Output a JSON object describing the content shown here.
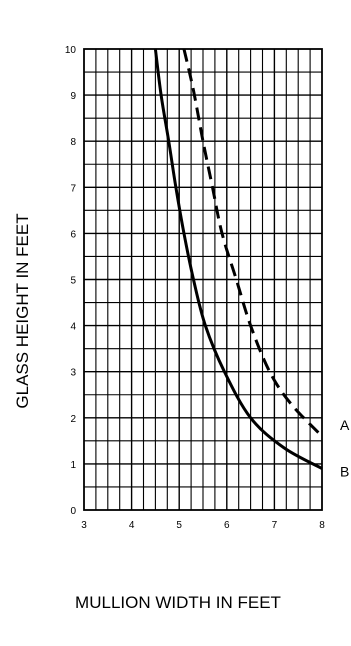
{
  "chart_data": {
    "type": "line",
    "xlabel": "MULLION WIDTH IN FEET",
    "ylabel": "GLASS HEIGHT IN FEET",
    "xlim": [
      3,
      8
    ],
    "ylim": [
      0,
      10
    ],
    "x_ticks": [
      "3",
      "4",
      "5",
      "6",
      "7",
      "8"
    ],
    "y_ticks": [
      "0",
      "1",
      "2",
      "3",
      "4",
      "5",
      "6",
      "7",
      "8",
      "9",
      "10"
    ],
    "grid": true,
    "minor_grid": {
      "x_step": 0.25,
      "y_step": 0.5
    },
    "series": [
      {
        "name": "A",
        "style": "dashed",
        "color": "#000000",
        "points": [
          [
            5.1,
            10
          ],
          [
            5.3,
            9.1
          ],
          [
            5.5,
            8.0
          ],
          [
            5.7,
            7.0
          ],
          [
            5.9,
            6.0
          ],
          [
            6.2,
            5.0
          ],
          [
            6.5,
            4.0
          ],
          [
            6.9,
            3.0
          ],
          [
            7.35,
            2.3
          ],
          [
            8.0,
            1.6
          ]
        ]
      },
      {
        "name": "B",
        "style": "solid",
        "color": "#000000",
        "points": [
          [
            4.5,
            10
          ],
          [
            4.62,
            9.0
          ],
          [
            4.78,
            8.0
          ],
          [
            4.93,
            7.0
          ],
          [
            5.1,
            6.0
          ],
          [
            5.3,
            5.0
          ],
          [
            5.55,
            4.0
          ],
          [
            5.95,
            3.0
          ],
          [
            6.5,
            2.0
          ],
          [
            7.2,
            1.35
          ],
          [
            8.0,
            0.9
          ]
        ]
      }
    ]
  }
}
